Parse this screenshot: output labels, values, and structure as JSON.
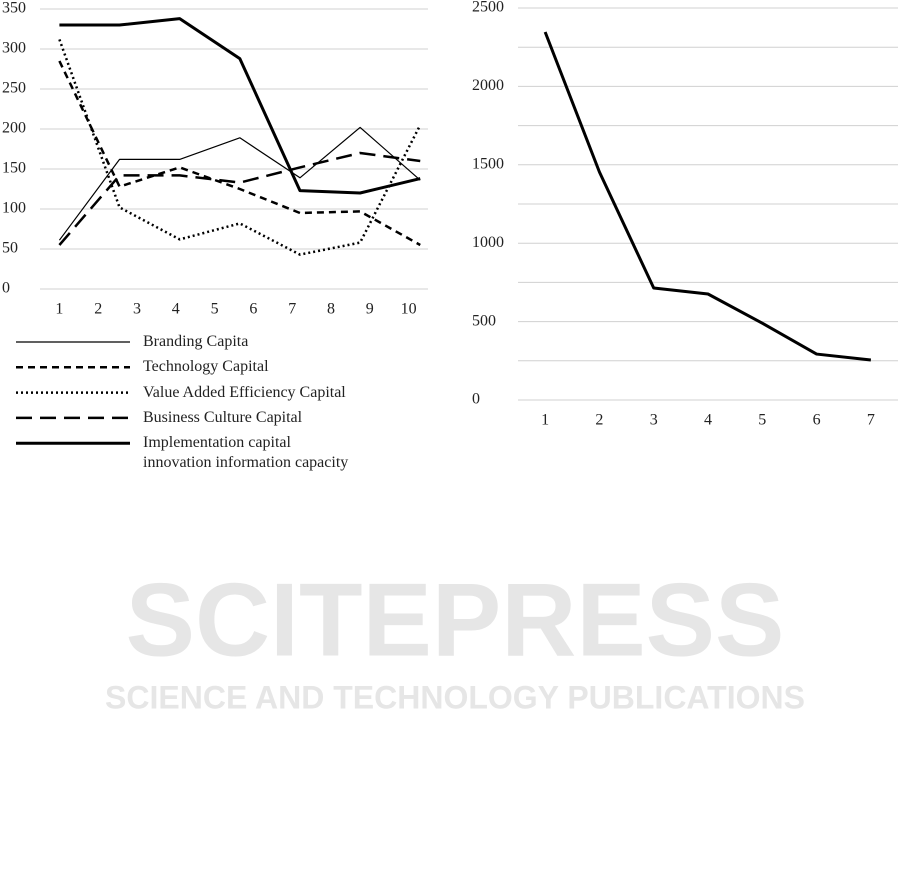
{
  "watermark": {
    "title": "SCITEPRESS",
    "subtitle": "SCIENCE AND TECHNOLOGY PUBLICATIONS"
  },
  "chart_data": [
    {
      "type": "line",
      "categories": [
        "1",
        "2",
        "3",
        "4",
        "5",
        "6",
        "7",
        "8",
        "9",
        "10"
      ],
      "xticks": [
        1,
        2,
        3,
        4,
        5,
        6,
        7,
        8,
        9,
        10
      ],
      "xlim": [
        0.5,
        10.5
      ],
      "x": [
        1,
        2.55,
        4.1,
        5.65,
        7.2,
        8.75,
        10.3
      ],
      "ylim": [
        0,
        350
      ],
      "yticks": [
        0,
        50,
        100,
        150,
        200,
        250,
        300,
        350
      ],
      "grid": true,
      "legend": "bottom",
      "series": [
        {
          "name": "Branding Capita",
          "color": "#000000",
          "width": 1.2,
          "dash": "none",
          "values": [
            61,
            162,
            162,
            189,
            139,
            202,
            136
          ]
        },
        {
          "name": "Technology Capital",
          "color": "#000000",
          "width": 2.5,
          "dash": "7 5",
          "values": [
            285,
            128,
            152,
            125,
            95,
            97,
            55
          ]
        },
        {
          "name": "Value Added Efficiency Capital",
          "color": "#000000",
          "width": 2.5,
          "dash": "2 3",
          "values": [
            312,
            102,
            62,
            82,
            43,
            58,
            205
          ]
        },
        {
          "name": "Business Culture Capital",
          "color": "#000000",
          "width": 2.5,
          "dash": "16 8",
          "values": [
            55,
            142,
            142,
            133,
            152,
            170,
            160
          ]
        },
        {
          "name": "Implementation capital\ninnovation information capacity",
          "color": "#000000",
          "width": 3,
          "dash": "none",
          "values": [
            330,
            330,
            338,
            288,
            123,
            120,
            138
          ]
        }
      ]
    },
    {
      "type": "line",
      "categories": [
        "1",
        "2",
        "3",
        "4",
        "5",
        "6",
        "7"
      ],
      "values": [
        2347,
        1454,
        714,
        676,
        490,
        293,
        255
      ],
      "color": "#000000",
      "width": 3,
      "ylim": [
        0,
        2500
      ],
      "yticks": [
        0,
        500,
        1000,
        1500,
        2000,
        2500
      ],
      "minor_yticks": [
        250,
        750,
        1250,
        1750,
        2250
      ],
      "grid": true
    }
  ]
}
